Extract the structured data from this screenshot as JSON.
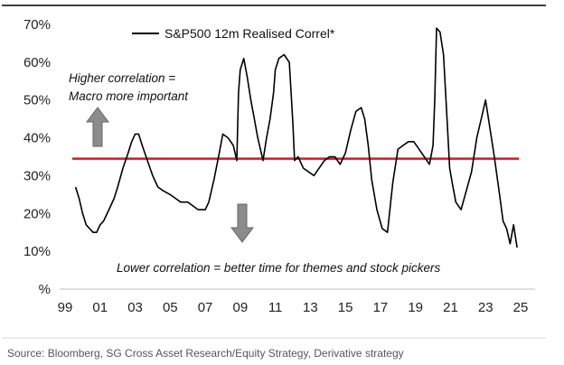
{
  "chart_data": {
    "type": "line",
    "legend": {
      "label": "S&P500 12m Realised Correl*",
      "placement": "top-center"
    },
    "xlabel": "",
    "ylabel": "",
    "x_tick_labels": [
      "99",
      "01",
      "03",
      "05",
      "07",
      "09",
      "11",
      "13",
      "15",
      "17",
      "19",
      "21",
      "23",
      "25"
    ],
    "x_tick_years": [
      1999,
      2001,
      2003,
      2005,
      2007,
      2009,
      2011,
      2013,
      2015,
      2017,
      2019,
      2021,
      2023,
      2025
    ],
    "xlim": [
      1999,
      2025
    ],
    "y_tick_labels": [
      "%",
      "10%",
      "20%",
      "30%",
      "40%",
      "50%",
      "60%",
      "70%"
    ],
    "y_tick_values": [
      0,
      10,
      20,
      30,
      40,
      50,
      60,
      70
    ],
    "ylim": [
      0,
      70
    ],
    "grid": false,
    "colors": {
      "series": "#000000",
      "threshold": "#d7191c",
      "arrow_fill": "#8c8c8c",
      "top_border": "#404040"
    },
    "series": [
      {
        "name": "S&P500 12m Realised Correl*",
        "x": [
          1999.6,
          1999.8,
          2000.0,
          2000.2,
          2000.4,
          2000.6,
          2000.8,
          2001.0,
          2001.2,
          2001.5,
          2001.8,
          2002.0,
          2002.3,
          2002.6,
          2002.8,
          2003.0,
          2003.2,
          2003.4,
          2003.7,
          2004.0,
          2004.3,
          2004.6,
          2005.0,
          2005.3,
          2005.6,
          2006.0,
          2006.3,
          2006.6,
          2007.0,
          2007.2,
          2007.5,
          2007.8,
          2008.0,
          2008.3,
          2008.6,
          2008.8,
          2008.9,
          2009.0,
          2009.2,
          2009.4,
          2009.6,
          2009.8,
          2010.0,
          2010.3,
          2010.5,
          2010.7,
          2010.9,
          2011.0,
          2011.2,
          2011.5,
          2011.8,
          2012.0,
          2012.1,
          2012.3,
          2012.6,
          2012.9,
          2013.2,
          2013.5,
          2013.8,
          2014.1,
          2014.4,
          2014.7,
          2015.0,
          2015.3,
          2015.6,
          2015.9,
          2016.1,
          2016.3,
          2016.5,
          2016.8,
          2017.1,
          2017.4,
          2017.7,
          2018.0,
          2018.3,
          2018.6,
          2018.9,
          2019.2,
          2019.5,
          2019.8,
          2020.0,
          2020.1,
          2020.2,
          2020.4,
          2020.6,
          2020.8,
          2020.95,
          2021.1,
          2021.3,
          2021.6,
          2021.9,
          2022.2,
          2022.5,
          2022.8,
          2023.0,
          2023.2,
          2023.5,
          2023.8,
          2024.0,
          2024.2,
          2024.4,
          2024.6,
          2024.8
        ],
        "values": [
          27,
          24,
          20,
          17,
          16,
          15,
          15,
          17,
          18,
          21,
          24,
          27,
          32,
          36,
          39,
          41,
          41,
          38,
          34,
          30,
          27,
          26,
          25,
          24,
          23,
          23,
          22,
          21,
          21,
          23,
          29,
          36,
          41,
          40,
          38,
          34,
          52,
          58,
          61,
          56,
          50,
          45,
          40,
          34,
          40,
          45,
          52,
          58,
          61,
          62,
          60,
          44,
          34,
          35,
          32,
          31,
          30,
          32,
          34,
          35,
          35,
          33,
          36,
          42,
          47,
          48,
          45,
          38,
          29,
          21,
          16,
          15,
          28,
          37,
          38,
          39,
          39,
          37,
          35,
          33,
          38,
          50,
          69,
          68,
          62,
          45,
          32,
          28,
          23,
          21,
          26,
          31,
          40,
          46,
          50,
          44,
          35,
          25,
          18,
          16,
          12,
          17,
          11
        ]
      }
    ],
    "threshold": {
      "value": 34.5
    },
    "annotations": {
      "higher_line1": "Higher correlation =",
      "higher_line2": "Macro more important",
      "lower": "Lower correlation = better time for themes and stock pickers"
    },
    "source": "Source: Bloomberg, SG Cross Asset Research/Equity Strategy, Derivative strategy"
  }
}
